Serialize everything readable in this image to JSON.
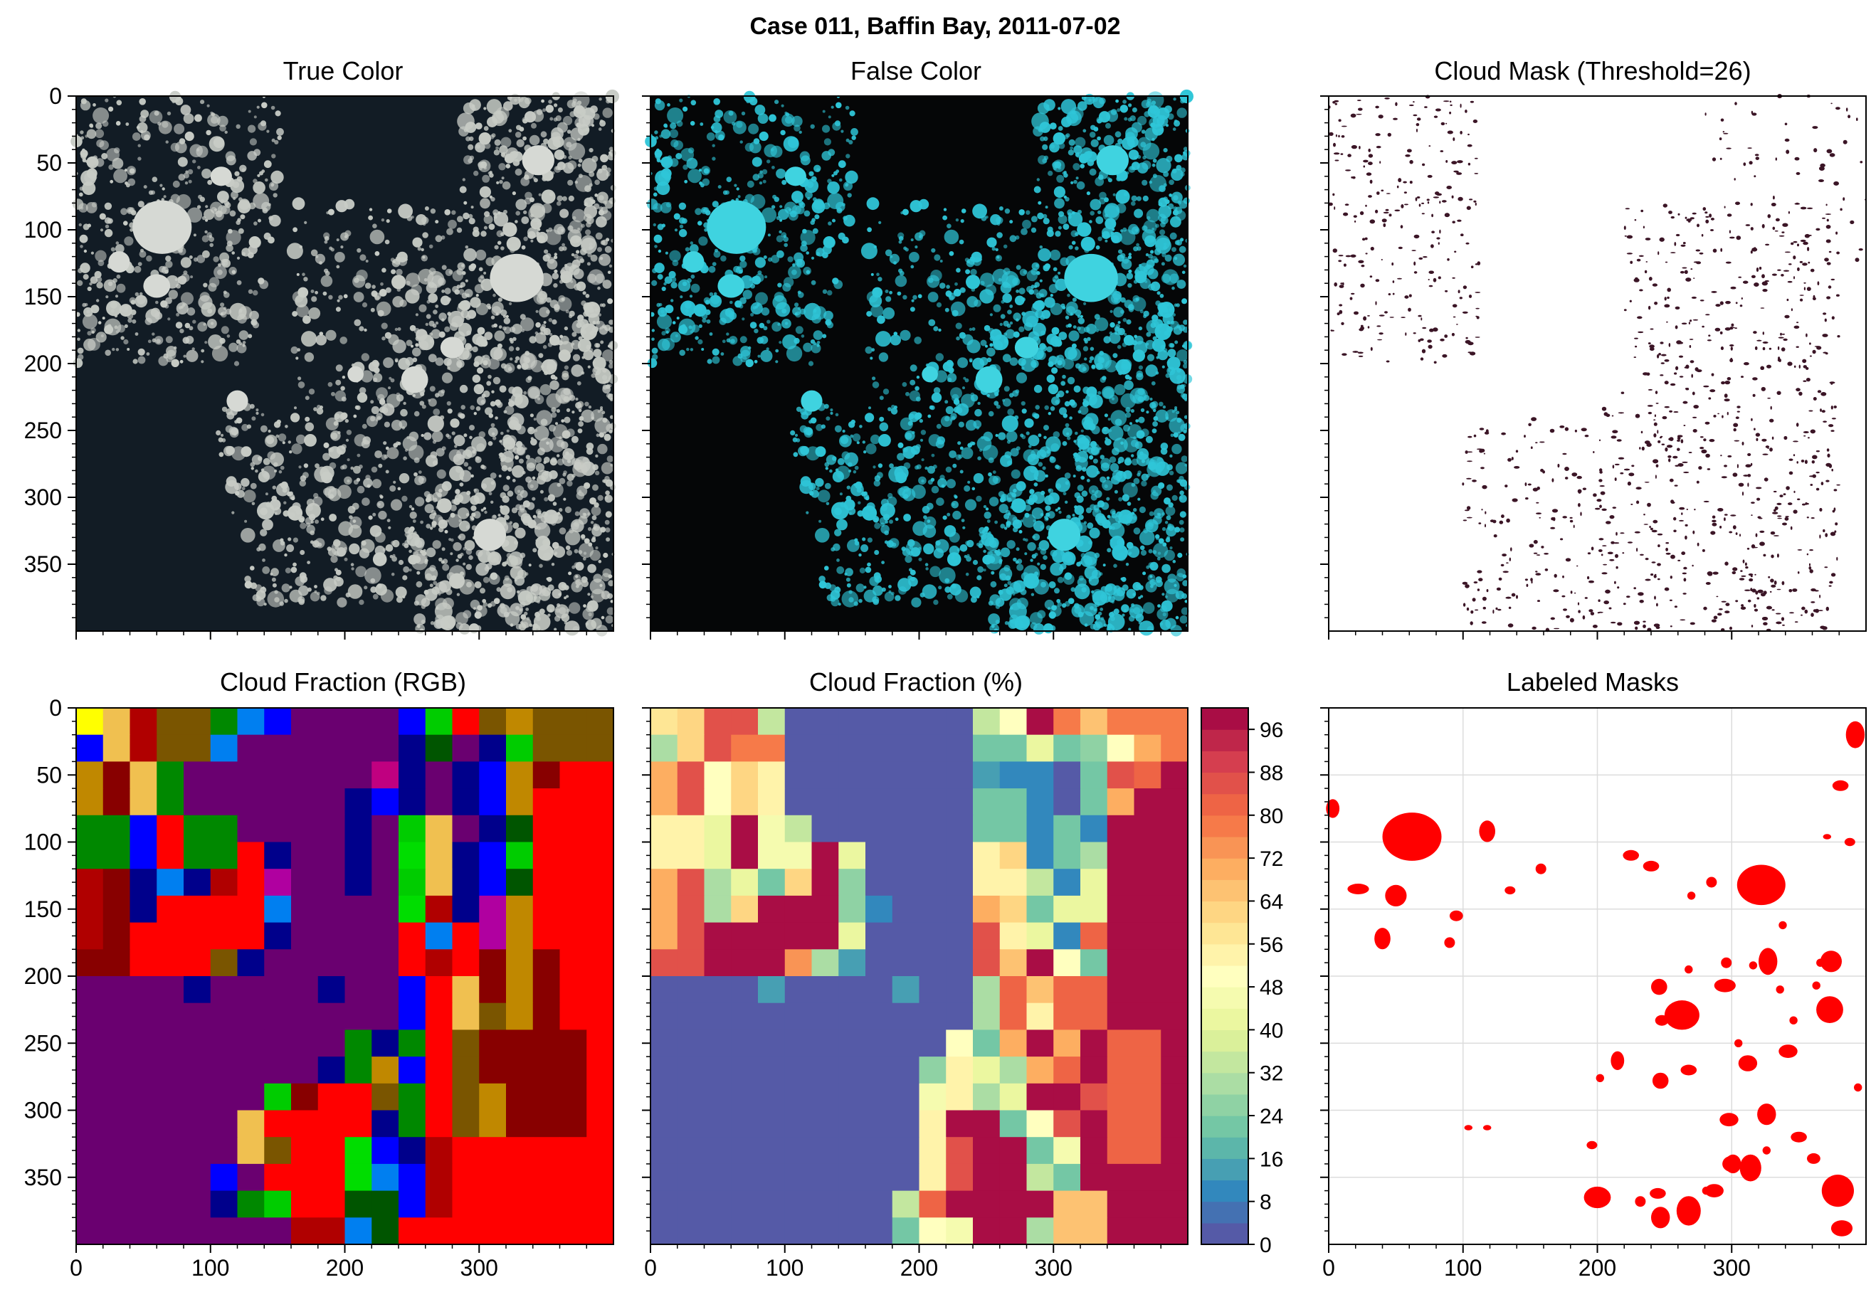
{
  "figure": {
    "title": "Case 011, Baffin Bay, 2011-07-02"
  },
  "panels": {
    "true_color": {
      "title": "True Color"
    },
    "false_color": {
      "title": "False Color"
    },
    "cloud_mask": {
      "title": "Cloud Mask (Threshold=26)"
    },
    "cf_rgb": {
      "title": "Cloud Fraction (RGB)"
    },
    "cf_pct": {
      "title": "Cloud Fraction (%)"
    },
    "labeled": {
      "title": "Labeled Masks"
    }
  },
  "colors": {
    "ocean_dark": "#121c25",
    "ice_gray": "#c8ccc6",
    "false_bg": "#050607",
    "false_ice": "#2fc6d8",
    "mask_dot": "#3b1526",
    "label_red": "#ff0000",
    "grid": "#dcdcdc"
  },
  "chart_data": [
    {
      "type": "heatmap",
      "panel": "Cloud Fraction (%)",
      "title": "Cloud Fraction (%)",
      "xlim": [
        0,
        400
      ],
      "ylim": [
        400,
        0
      ],
      "grid_size": [
        20,
        20
      ],
      "xticks": [
        "0",
        "100",
        "200",
        "300"
      ],
      "yticks": [
        "0",
        "50",
        "100",
        "150",
        "200",
        "250",
        "300",
        "350"
      ],
      "colorbar": {
        "range": [
          0,
          100
        ],
        "colormap": "Spectral_r",
        "ticks": [
          "0",
          "8",
          "16",
          "24",
          "32",
          "40",
          "48",
          "56",
          "64",
          "72",
          "80",
          "88",
          "96"
        ]
      },
      "values": [
        [
          58,
          62,
          85,
          85,
          35,
          0,
          0,
          0,
          0,
          0,
          0,
          0,
          35,
          50,
          100,
          78,
          65,
          78,
          78,
          78
        ],
        [
          30,
          62,
          85,
          78,
          78,
          0,
          0,
          0,
          0,
          0,
          0,
          0,
          20,
          20,
          40,
          20,
          25,
          50,
          70,
          78
        ],
        [
          70,
          85,
          50,
          62,
          52,
          0,
          0,
          0,
          0,
          0,
          0,
          0,
          15,
          10,
          10,
          0,
          20,
          85,
          80,
          100
        ],
        [
          70,
          85,
          50,
          62,
          52,
          0,
          0,
          0,
          0,
          0,
          0,
          0,
          20,
          20,
          10,
          0,
          20,
          70,
          100,
          100
        ],
        [
          52,
          52,
          40,
          100,
          45,
          35,
          0,
          0,
          0,
          0,
          0,
          0,
          20,
          20,
          10,
          20,
          10,
          100,
          100,
          100
        ],
        [
          52,
          52,
          40,
          100,
          45,
          45,
          100,
          40,
          0,
          0,
          0,
          0,
          55,
          60,
          10,
          20,
          30,
          100,
          100,
          100
        ],
        [
          70,
          85,
          30,
          40,
          20,
          60,
          100,
          25,
          0,
          0,
          0,
          0,
          55,
          55,
          35,
          10,
          40,
          100,
          100,
          100
        ],
        [
          70,
          85,
          30,
          60,
          100,
          100,
          100,
          25,
          10,
          0,
          0,
          0,
          70,
          60,
          20,
          40,
          40,
          100,
          100,
          100
        ],
        [
          70,
          85,
          100,
          100,
          100,
          100,
          100,
          40,
          0,
          0,
          0,
          0,
          85,
          55,
          40,
          10,
          80,
          100,
          100,
          100
        ],
        [
          85,
          85,
          100,
          100,
          100,
          72,
          30,
          15,
          0,
          0,
          0,
          0,
          85,
          65,
          100,
          50,
          20,
          100,
          100,
          100
        ],
        [
          0,
          0,
          0,
          0,
          15,
          0,
          0,
          0,
          0,
          15,
          0,
          0,
          30,
          80,
          65,
          80,
          80,
          100,
          100,
          100
        ],
        [
          0,
          0,
          0,
          0,
          0,
          0,
          0,
          0,
          0,
          0,
          0,
          0,
          30,
          80,
          55,
          80,
          80,
          100,
          100,
          100
        ],
        [
          0,
          0,
          0,
          0,
          0,
          0,
          0,
          0,
          0,
          0,
          0,
          50,
          20,
          70,
          100,
          70,
          100,
          80,
          80,
          100
        ],
        [
          0,
          0,
          0,
          0,
          0,
          0,
          0,
          0,
          0,
          0,
          25,
          55,
          40,
          30,
          70,
          80,
          100,
          80,
          80,
          100
        ],
        [
          0,
          0,
          0,
          0,
          0,
          0,
          0,
          0,
          0,
          0,
          45,
          55,
          30,
          40,
          100,
          100,
          85,
          80,
          80,
          100
        ],
        [
          0,
          0,
          0,
          0,
          0,
          0,
          0,
          0,
          0,
          0,
          55,
          100,
          100,
          20,
          50,
          85,
          100,
          80,
          80,
          100
        ],
        [
          0,
          0,
          0,
          0,
          0,
          0,
          0,
          0,
          0,
          0,
          55,
          85,
          100,
          100,
          20,
          45,
          100,
          80,
          80,
          100
        ],
        [
          0,
          0,
          0,
          0,
          0,
          0,
          0,
          0,
          0,
          0,
          55,
          85,
          100,
          100,
          35,
          20,
          100,
          100,
          100,
          100
        ],
        [
          0,
          0,
          0,
          0,
          0,
          0,
          0,
          0,
          0,
          35,
          80,
          100,
          100,
          100,
          100,
          65,
          65,
          100,
          100,
          100
        ],
        [
          0,
          0,
          0,
          0,
          0,
          0,
          0,
          0,
          0,
          20,
          50,
          45,
          100,
          100,
          30,
          65,
          65,
          100,
          100,
          100
        ]
      ]
    },
    {
      "type": "heatmap",
      "panel": "Cloud Fraction (RGB)",
      "title": "Cloud Fraction (RGB)",
      "xlim": [
        0,
        400
      ],
      "ylim": [
        400,
        0
      ],
      "grid_size": [
        20,
        20
      ],
      "xticks": [
        "0",
        "100",
        "200",
        "300"
      ],
      "yticks": [
        "0",
        "50",
        "100",
        "150",
        "200",
        "250",
        "300",
        "350"
      ],
      "palette": [
        "#6a0070",
        "#ffff00",
        "#f0c050",
        "#b00000",
        "#7a5500",
        "#0000ff",
        "#00008b",
        "#00cc00",
        "#008800",
        "#007ff0",
        "#ff0000",
        "#b000a0",
        "#005500",
        "#c08800",
        "#880000",
        "#c00080",
        "#00dd00",
        "#00c0d0"
      ],
      "codes": [
        [
          1,
          2,
          3,
          4,
          4,
          8,
          9,
          5,
          0,
          0,
          0,
          0,
          5,
          7,
          10,
          4,
          13,
          4,
          4,
          4
        ],
        [
          5,
          2,
          3,
          4,
          4,
          9,
          0,
          0,
          0,
          0,
          0,
          0,
          6,
          12,
          0,
          6,
          7,
          4,
          4,
          4
        ],
        [
          13,
          14,
          2,
          8,
          0,
          0,
          0,
          0,
          0,
          0,
          0,
          15,
          6,
          0,
          6,
          5,
          13,
          14,
          10,
          10
        ],
        [
          13,
          14,
          2,
          8,
          0,
          0,
          0,
          0,
          0,
          0,
          6,
          5,
          6,
          0,
          6,
          5,
          13,
          10,
          10,
          10
        ],
        [
          8,
          8,
          5,
          10,
          8,
          8,
          0,
          0,
          0,
          0,
          6,
          0,
          7,
          2,
          0,
          6,
          12,
          10,
          10,
          10
        ],
        [
          8,
          8,
          5,
          10,
          8,
          8,
          10,
          6,
          0,
          0,
          6,
          0,
          16,
          2,
          6,
          5,
          7,
          10,
          10,
          10
        ],
        [
          3,
          14,
          6,
          9,
          6,
          3,
          10,
          11,
          0,
          0,
          6,
          0,
          7,
          2,
          6,
          5,
          12,
          10,
          10,
          10
        ],
        [
          3,
          14,
          6,
          10,
          10,
          10,
          10,
          9,
          0,
          0,
          0,
          0,
          16,
          3,
          6,
          11,
          13,
          10,
          10,
          10
        ],
        [
          3,
          14,
          10,
          10,
          10,
          10,
          10,
          6,
          0,
          0,
          0,
          0,
          10,
          9,
          10,
          11,
          13,
          10,
          10,
          10
        ],
        [
          14,
          14,
          10,
          10,
          10,
          4,
          6,
          0,
          0,
          0,
          0,
          0,
          10,
          3,
          10,
          14,
          13,
          14,
          10,
          10
        ],
        [
          0,
          0,
          0,
          0,
          6,
          0,
          0,
          0,
          0,
          6,
          0,
          0,
          5,
          10,
          2,
          14,
          13,
          14,
          10,
          10
        ],
        [
          0,
          0,
          0,
          0,
          0,
          0,
          0,
          0,
          0,
          0,
          0,
          0,
          5,
          10,
          2,
          4,
          13,
          14,
          10,
          10
        ],
        [
          0,
          0,
          0,
          0,
          0,
          0,
          0,
          0,
          0,
          0,
          8,
          6,
          8,
          10,
          4,
          14,
          14,
          14,
          14,
          10
        ],
        [
          0,
          0,
          0,
          0,
          0,
          0,
          0,
          0,
          0,
          6,
          8,
          13,
          5,
          10,
          4,
          14,
          14,
          14,
          14,
          10
        ],
        [
          0,
          0,
          0,
          0,
          0,
          0,
          0,
          7,
          14,
          10,
          10,
          4,
          8,
          10,
          4,
          13,
          14,
          14,
          14,
          10
        ],
        [
          0,
          0,
          0,
          0,
          0,
          0,
          2,
          10,
          10,
          10,
          10,
          6,
          8,
          10,
          4,
          13,
          14,
          14,
          14,
          10
        ],
        [
          0,
          0,
          0,
          0,
          0,
          0,
          2,
          4,
          10,
          10,
          16,
          5,
          6,
          3,
          10,
          10,
          10,
          10,
          10,
          10
        ],
        [
          0,
          0,
          0,
          0,
          0,
          5,
          0,
          10,
          10,
          10,
          16,
          9,
          5,
          3,
          10,
          10,
          10,
          10,
          10,
          10
        ],
        [
          0,
          0,
          0,
          0,
          0,
          6,
          8,
          7,
          10,
          10,
          12,
          12,
          5,
          3,
          10,
          10,
          10,
          10,
          10,
          10
        ],
        [
          0,
          0,
          0,
          0,
          0,
          0,
          0,
          0,
          3,
          3,
          9,
          12,
          10,
          10,
          10,
          10,
          10,
          10,
          10,
          10
        ]
      ]
    }
  ]
}
